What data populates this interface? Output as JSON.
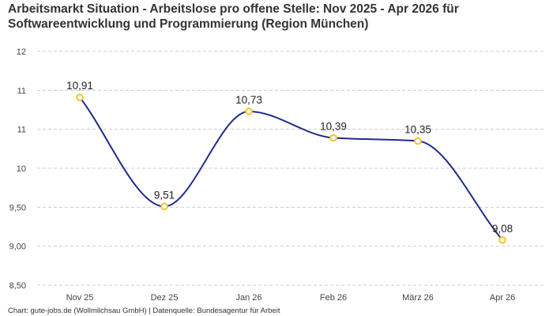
{
  "title_lines": [
    "Arbeitsmarkt Situation - Arbeitslose pro offene Stelle: Nov 2025 - Apr 2026 für",
    "Softwareentwicklung und Programmierung (Region München)"
  ],
  "footer": "Chart: gute-jobs.de (Wollmilchsau GmbH) | Datenquelle: Bundesagentur für Arbeit",
  "colors": {
    "line": "#1f2d8a",
    "marker": "#f3c623",
    "grid": "#cccccc"
  },
  "chart_data": {
    "type": "line",
    "categories": [
      "Nov 25",
      "Dez 25",
      "Jan 26",
      "Feb 26",
      "März 26",
      "Apr 26"
    ],
    "values": [
      10.91,
      9.51,
      10.73,
      10.39,
      10.35,
      9.08
    ],
    "data_labels": [
      "10,91",
      "9,51",
      "10,73",
      "10,39",
      "10,35",
      "9,08"
    ],
    "y_ticks": [
      8.5,
      9.0,
      9.5,
      10.0,
      10.5,
      11.0,
      11.5
    ],
    "y_tick_labels": [
      "8,50",
      "9,00",
      "9,50",
      "10",
      "11",
      "11",
      "12"
    ],
    "ylim": [
      8.5,
      11.5
    ],
    "grid": true,
    "legend": "none",
    "title": "Arbeitsmarkt Situation - Arbeitslose pro offene Stelle: Nov 2025 - Apr 2026 für Softwareentwicklung und Programmierung (Region München)",
    "xlabel": "",
    "ylabel": ""
  }
}
